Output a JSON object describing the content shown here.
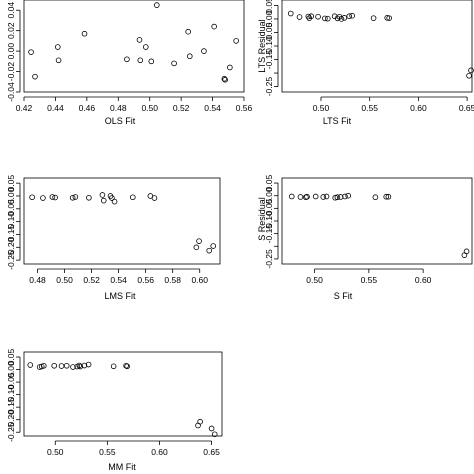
{
  "chart_data": [
    {
      "type": "scatter",
      "xlabel": "OLS Fit",
      "ylabel": "",
      "xlim": [
        0.42,
        0.56
      ],
      "ylim": [
        -0.04,
        0.05
      ],
      "x_ticks": [
        0.42,
        0.44,
        0.46,
        0.48,
        0.5,
        0.52,
        0.54,
        0.56
      ],
      "y_ticks": [
        -0.04,
        -0.02,
        0.0,
        0.02,
        0.04
      ],
      "x_tick_labels": [
        "0.42",
        "0.44",
        "0.46",
        "0.48",
        "0.50",
        "0.52",
        "0.54",
        "0.56"
      ],
      "y_tick_labels": [
        "-0.04",
        "-0.02",
        "0.00",
        "0.02",
        "0.04"
      ],
      "x": [
        0.4245,
        0.427,
        0.4415,
        0.442,
        0.4585,
        0.4855,
        0.4935,
        0.494,
        0.4975,
        0.501,
        0.5045,
        0.5155,
        0.5245,
        0.5255,
        0.5345,
        0.541,
        0.5475,
        0.548,
        0.551,
        0.555
      ],
      "y": [
        -0.001,
        -0.025,
        0.004,
        -0.009,
        0.017,
        -0.008,
        0.011,
        -0.009,
        0.004,
        -0.01,
        0.045,
        -0.012,
        0.019,
        -0.005,
        0.0,
        0.024,
        -0.027,
        -0.028,
        -0.016,
        0.01
      ]
    },
    {
      "type": "scatter",
      "xlabel": "LTS Fit",
      "ylabel": "LTS Residual",
      "xlim": [
        0.46,
        0.655
      ],
      "ylim": [
        -0.27,
        0.07
      ],
      "x_ticks": [
        0.5,
        0.55,
        0.6,
        0.65
      ],
      "y_ticks": [
        0.05,
        0.0,
        -0.05,
        -0.1,
        -0.15,
        -0.2,
        -0.25
      ],
      "x_tick_labels": [
        "0.50",
        "0.55",
        "0.60",
        "0.65"
      ],
      "y_tick_labels": [
        "0.05",
        "0.00",
        "-0.05",
        "-0.10",
        "-0.15",
        "-0.25"
      ],
      "y_tick_labels_values": [
        0.05,
        0.0,
        -0.05,
        -0.1,
        -0.15,
        -0.25
      ],
      "x": [
        0.469,
        0.478,
        0.487,
        0.488,
        0.49,
        0.497,
        0.504,
        0.507,
        0.514,
        0.517,
        0.519,
        0.521,
        0.524,
        0.529,
        0.532,
        0.554,
        0.568,
        0.57,
        0.652,
        0.654
      ],
      "y": [
        0.02,
        0.007,
        0.009,
        0.003,
        0.01,
        0.008,
        0.002,
        0.001,
        0.01,
        0.002,
        0.008,
        0.0,
        0.004,
        0.01,
        0.012,
        0.003,
        0.004,
        0.003,
        -0.21,
        -0.19
      ]
    },
    {
      "type": "scatter",
      "xlabel": "LMS Fit",
      "ylabel": "",
      "xlim": [
        0.47,
        0.615
      ],
      "ylim": [
        -0.265,
        0.07
      ],
      "x_ticks": [
        0.48,
        0.5,
        0.52,
        0.54,
        0.56,
        0.58,
        0.6
      ],
      "y_ticks": [
        0.05,
        0.0,
        -0.05,
        -0.1,
        -0.15,
        -0.2,
        -0.25
      ],
      "x_tick_labels": [
        "0.48",
        "0.50",
        "0.52",
        "0.54",
        "0.56",
        "0.58",
        "0.60"
      ],
      "y_tick_labels": [
        "0.05",
        "0.00",
        "-0.05",
        "-0.10",
        "-0.15",
        "-0.20",
        "-0.25"
      ],
      "x": [
        0.476,
        0.484,
        0.491,
        0.493,
        0.506,
        0.508,
        0.518,
        0.528,
        0.529,
        0.534,
        0.535,
        0.537,
        0.5505,
        0.5635,
        0.5665,
        0.5975,
        0.5995,
        0.607,
        0.61
      ],
      "y": [
        -0.005,
        -0.008,
        -0.004,
        -0.006,
        -0.007,
        -0.004,
        -0.007,
        0.004,
        -0.018,
        0.0,
        -0.008,
        -0.022,
        -0.005,
        0.0,
        -0.008,
        -0.2,
        -0.176,
        -0.213,
        -0.195
      ]
    },
    {
      "type": "scatter",
      "xlabel": "S Fit",
      "ylabel": "S Residual",
      "xlim": [
        0.47,
        0.645
      ],
      "ylim": [
        -0.27,
        0.07
      ],
      "x_ticks": [
        0.5,
        0.55,
        0.6
      ],
      "y_ticks": [
        0.05,
        0.0,
        -0.05,
        -0.1,
        -0.15,
        -0.2,
        -0.25
      ],
      "x_tick_labels": [
        "0.50",
        "0.55",
        "0.60"
      ],
      "y_tick_labels": [
        "0.05",
        "0.00",
        "-0.05",
        "-0.10",
        "-0.15",
        "-0.25"
      ],
      "y_tick_labels_values": [
        0.05,
        0.0,
        -0.05,
        -0.1,
        -0.15,
        -0.25
      ],
      "x": [
        0.479,
        0.487,
        0.492,
        0.493,
        0.501,
        0.508,
        0.511,
        0.519,
        0.521,
        0.524,
        0.528,
        0.531,
        0.556,
        0.566,
        0.568,
        0.638,
        0.64
      ],
      "y": [
        -0.003,
        -0.005,
        -0.006,
        -0.004,
        -0.003,
        -0.005,
        -0.003,
        -0.008,
        -0.006,
        -0.005,
        -0.003,
        0.0,
        -0.006,
        -0.004,
        -0.004,
        -0.235,
        -0.22
      ]
    },
    {
      "type": "scatter",
      "xlabel": "MM Fit",
      "ylabel": "",
      "xlim": [
        0.47,
        0.66
      ],
      "ylim": [
        -0.265,
        0.07
      ],
      "x_ticks": [
        0.5,
        0.55,
        0.6,
        0.65
      ],
      "y_ticks": [
        0.05,
        0.0,
        -0.05,
        -0.1,
        -0.15,
        -0.2,
        -0.25
      ],
      "x_tick_labels": [
        "0.50",
        "0.55",
        "0.60",
        "0.65"
      ],
      "y_tick_labels": [
        "0.05",
        "0.00",
        "-0.05",
        "-0.10",
        "-0.15",
        "-0.20",
        "-0.25"
      ],
      "x": [
        0.476,
        0.485,
        0.487,
        0.489,
        0.499,
        0.506,
        0.511,
        0.517,
        0.521,
        0.523,
        0.524,
        0.528,
        0.532,
        0.556,
        0.568,
        0.569,
        0.637,
        0.639,
        0.65,
        0.653
      ],
      "y": [
        0.018,
        0.01,
        0.012,
        0.015,
        0.015,
        0.014,
        0.015,
        0.01,
        0.012,
        0.016,
        0.012,
        0.016,
        0.02,
        0.013,
        0.015,
        0.013,
        -0.223,
        -0.208,
        -0.235,
        -0.258
      ]
    }
  ]
}
